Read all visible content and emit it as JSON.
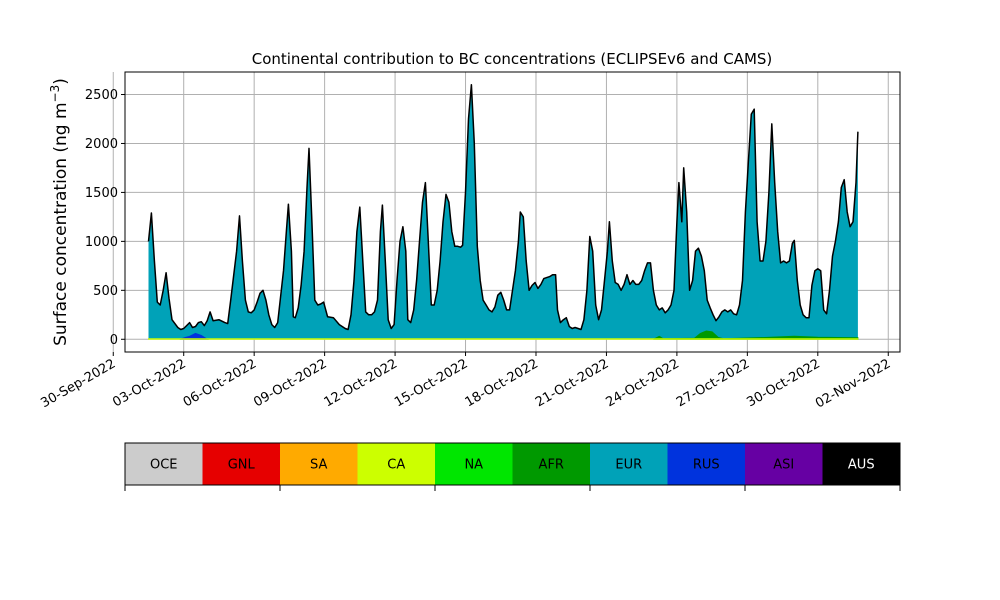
{
  "chart_data": {
    "type": "area",
    "title": "Continental contribution to BC concentrations (ECLIPSEv6 and CAMS)",
    "ylabel": "Surface concentration (ng m",
    "ylabel_sup": "−3",
    "ylabel_close": ")",
    "xlabel": "",
    "ylim": [
      -130,
      2730
    ],
    "xlim": [
      "2022-09-30T12:00",
      "2022-11-02T12:00"
    ],
    "grid": true,
    "stacking": "stacked",
    "y_ticks": [
      0,
      500,
      1000,
      1500,
      2000,
      2500
    ],
    "x_ticks": [
      "30-Sep-2022",
      "03-Oct-2022",
      "06-Oct-2022",
      "09-Oct-2022",
      "12-Oct-2022",
      "15-Oct-2022",
      "18-Oct-2022",
      "21-Oct-2022",
      "24-Oct-2022",
      "27-Oct-2022",
      "30-Oct-2022",
      "02-Nov-2022"
    ],
    "x_tick_dates": [
      "2022-09-30",
      "2022-10-03",
      "2022-10-06",
      "2022-10-09",
      "2022-10-12",
      "2022-10-15",
      "2022-10-18",
      "2022-10-21",
      "2022-10-24",
      "2022-10-27",
      "2022-10-30",
      "2022-11-02"
    ],
    "legend": {
      "placement": "bottom",
      "entries": [
        {
          "label": "OCE",
          "color": "#cccccc"
        },
        {
          "label": "GNL",
          "color": "#e60000"
        },
        {
          "label": "SA",
          "color": "#ffaa00"
        },
        {
          "label": "CA",
          "color": "#ccff00"
        },
        {
          "label": "NA",
          "color": "#00e600"
        },
        {
          "label": "AFR",
          "color": "#009900"
        },
        {
          "label": "EUR",
          "color": "#00a2b8"
        },
        {
          "label": "RUS",
          "color": "#0033dd"
        },
        {
          "label": "ASI",
          "color": "#6600a3"
        },
        {
          "label": "AUS",
          "color": "#000000"
        }
      ]
    },
    "total": [
      [
        "2022-10-01T12:00",
        1000
      ],
      [
        "2022-10-01T15:00",
        1290
      ],
      [
        "2022-10-01T18:00",
        800
      ],
      [
        "2022-10-01T21:00",
        380
      ],
      [
        "2022-10-02T00:00",
        350
      ],
      [
        "2022-10-02T03:00",
        500
      ],
      [
        "2022-10-02T06:00",
        680
      ],
      [
        "2022-10-02T09:00",
        420
      ],
      [
        "2022-10-02T12:00",
        200
      ],
      [
        "2022-10-02T15:00",
        160
      ],
      [
        "2022-10-02T18:00",
        120
      ],
      [
        "2022-10-02T21:00",
        100
      ],
      [
        "2022-10-03T00:00",
        110
      ],
      [
        "2022-10-03T03:00",
        140
      ],
      [
        "2022-10-03T06:00",
        170
      ],
      [
        "2022-10-03T09:00",
        120
      ],
      [
        "2022-10-03T12:00",
        130
      ],
      [
        "2022-10-03T15:00",
        170
      ],
      [
        "2022-10-03T18:00",
        180
      ],
      [
        "2022-10-03T21:00",
        140
      ],
      [
        "2022-10-04T00:00",
        190
      ],
      [
        "2022-10-04T03:00",
        280
      ],
      [
        "2022-10-04T06:00",
        190
      ],
      [
        "2022-10-04T12:00",
        200
      ],
      [
        "2022-10-04T18:00",
        170
      ],
      [
        "2022-10-04T21:00",
        160
      ],
      [
        "2022-10-05T00:00",
        400
      ],
      [
        "2022-10-05T06:00",
        900
      ],
      [
        "2022-10-05T09:00",
        1260
      ],
      [
        "2022-10-05T12:00",
        800
      ],
      [
        "2022-10-05T15:00",
        400
      ],
      [
        "2022-10-05T18:00",
        280
      ],
      [
        "2022-10-05T21:00",
        270
      ],
      [
        "2022-10-06T00:00",
        300
      ],
      [
        "2022-10-06T03:00",
        380
      ],
      [
        "2022-10-06T06:00",
        470
      ],
      [
        "2022-10-06T09:00",
        500
      ],
      [
        "2022-10-06T12:00",
        400
      ],
      [
        "2022-10-06T15:00",
        250
      ],
      [
        "2022-10-06T18:00",
        150
      ],
      [
        "2022-10-06T21:00",
        120
      ],
      [
        "2022-10-07T00:00",
        170
      ],
      [
        "2022-10-07T06:00",
        700
      ],
      [
        "2022-10-07T09:00",
        1120
      ],
      [
        "2022-10-07T11:00",
        1380
      ],
      [
        "2022-10-07T14:00",
        900
      ],
      [
        "2022-10-07T16:00",
        230
      ],
      [
        "2022-10-07T18:00",
        220
      ],
      [
        "2022-10-07T21:00",
        320
      ],
      [
        "2022-10-08T00:00",
        550
      ],
      [
        "2022-10-08T03:00",
        900
      ],
      [
        "2022-10-08T06:00",
        1550
      ],
      [
        "2022-10-08T08:00",
        1950
      ],
      [
        "2022-10-08T11:00",
        1200
      ],
      [
        "2022-10-08T14:00",
        400
      ],
      [
        "2022-10-08T17:00",
        350
      ],
      [
        "2022-10-08T20:00",
        360
      ],
      [
        "2022-10-08T23:00",
        380
      ],
      [
        "2022-10-09T03:00",
        230
      ],
      [
        "2022-10-09T09:00",
        220
      ],
      [
        "2022-10-09T15:00",
        150
      ],
      [
        "2022-10-09T21:00",
        110
      ],
      [
        "2022-10-10T00:00",
        100
      ],
      [
        "2022-10-10T03:00",
        250
      ],
      [
        "2022-10-10T06:00",
        600
      ],
      [
        "2022-10-10T09:00",
        1100
      ],
      [
        "2022-10-10T12:00",
        1350
      ],
      [
        "2022-10-10T15:00",
        800
      ],
      [
        "2022-10-10T18:00",
        280
      ],
      [
        "2022-10-10T21:00",
        250
      ],
      [
        "2022-10-11T00:00",
        250
      ],
      [
        "2022-10-11T03:00",
        280
      ],
      [
        "2022-10-11T06:00",
        400
      ],
      [
        "2022-10-11T09:00",
        1100
      ],
      [
        "2022-10-11T11:00",
        1370
      ],
      [
        "2022-10-11T14:00",
        800
      ],
      [
        "2022-10-11T17:00",
        200
      ],
      [
        "2022-10-11T20:00",
        110
      ],
      [
        "2022-10-11T23:00",
        150
      ],
      [
        "2022-10-12T02:00",
        600
      ],
      [
        "2022-10-12T05:00",
        1000
      ],
      [
        "2022-10-12T08:00",
        1150
      ],
      [
        "2022-10-12T11:00",
        900
      ],
      [
        "2022-10-12T13:00",
        200
      ],
      [
        "2022-10-12T16:00",
        170
      ],
      [
        "2022-10-12T19:00",
        300
      ],
      [
        "2022-10-12T22:00",
        600
      ],
      [
        "2022-10-13T01:00",
        1000
      ],
      [
        "2022-10-13T04:00",
        1400
      ],
      [
        "2022-10-13T07:00",
        1600
      ],
      [
        "2022-10-13T10:00",
        1000
      ],
      [
        "2022-10-13T13:00",
        350
      ],
      [
        "2022-10-13T16:00",
        350
      ],
      [
        "2022-10-13T19:00",
        500
      ],
      [
        "2022-10-13T22:00",
        800
      ],
      [
        "2022-10-14T01:00",
        1200
      ],
      [
        "2022-10-14T04:00",
        1480
      ],
      [
        "2022-10-14T07:00",
        1400
      ],
      [
        "2022-10-14T10:00",
        1100
      ],
      [
        "2022-10-14T13:00",
        950
      ],
      [
        "2022-10-14T16:00",
        950
      ],
      [
        "2022-10-14T19:00",
        940
      ],
      [
        "2022-10-14T21:00",
        960
      ],
      [
        "2022-10-15T00:00",
        1500
      ],
      [
        "2022-10-15T03:00",
        2250
      ],
      [
        "2022-10-15T06:00",
        2600
      ],
      [
        "2022-10-15T09:00",
        2000
      ],
      [
        "2022-10-15T12:00",
        950
      ],
      [
        "2022-10-15T15:00",
        600
      ],
      [
        "2022-10-15T18:00",
        400
      ],
      [
        "2022-10-15T21:00",
        350
      ],
      [
        "2022-10-16T00:00",
        300
      ],
      [
        "2022-10-16T03:00",
        280
      ],
      [
        "2022-10-16T06:00",
        330
      ],
      [
        "2022-10-16T09:00",
        450
      ],
      [
        "2022-10-16T12:00",
        480
      ],
      [
        "2022-10-16T15:00",
        400
      ],
      [
        "2022-10-16T18:00",
        300
      ],
      [
        "2022-10-16T21:00",
        300
      ],
      [
        "2022-10-17T00:00",
        500
      ],
      [
        "2022-10-17T03:00",
        700
      ],
      [
        "2022-10-17T06:00",
        1000
      ],
      [
        "2022-10-17T08:00",
        1300
      ],
      [
        "2022-10-17T11:00",
        1250
      ],
      [
        "2022-10-17T14:00",
        800
      ],
      [
        "2022-10-17T17:00",
        500
      ],
      [
        "2022-10-17T20:00",
        550
      ],
      [
        "2022-10-17T23:00",
        580
      ],
      [
        "2022-10-18T02:00",
        520
      ],
      [
        "2022-10-18T05:00",
        560
      ],
      [
        "2022-10-18T08:00",
        620
      ],
      [
        "2022-10-18T11:00",
        630
      ],
      [
        "2022-10-18T14:00",
        640
      ],
      [
        "2022-10-18T17:00",
        660
      ],
      [
        "2022-10-18T20:00",
        660
      ],
      [
        "2022-10-18T22:00",
        300
      ],
      [
        "2022-10-19T01:00",
        170
      ],
      [
        "2022-10-19T04:00",
        200
      ],
      [
        "2022-10-19T07:00",
        220
      ],
      [
        "2022-10-19T10:00",
        130
      ],
      [
        "2022-10-19T13:00",
        110
      ],
      [
        "2022-10-19T16:00",
        120
      ],
      [
        "2022-10-19T19:00",
        110
      ],
      [
        "2022-10-19T22:00",
        100
      ],
      [
        "2022-10-20T01:00",
        200
      ],
      [
        "2022-10-20T04:00",
        500
      ],
      [
        "2022-10-20T07:00",
        1050
      ],
      [
        "2022-10-20T10:00",
        900
      ],
      [
        "2022-10-20T13:00",
        350
      ],
      [
        "2022-10-20T16:00",
        200
      ],
      [
        "2022-10-20T19:00",
        300
      ],
      [
        "2022-10-20T22:00",
        600
      ],
      [
        "2022-10-21T01:00",
        900
      ],
      [
        "2022-10-21T03:00",
        1200
      ],
      [
        "2022-10-21T06:00",
        800
      ],
      [
        "2022-10-21T09:00",
        580
      ],
      [
        "2022-10-21T12:00",
        560
      ],
      [
        "2022-10-21T15:00",
        500
      ],
      [
        "2022-10-21T18:00",
        560
      ],
      [
        "2022-10-21T21:00",
        660
      ],
      [
        "2022-10-22T00:00",
        560
      ],
      [
        "2022-10-22T03:00",
        600
      ],
      [
        "2022-10-22T06:00",
        560
      ],
      [
        "2022-10-22T09:00",
        560
      ],
      [
        "2022-10-22T12:00",
        600
      ],
      [
        "2022-10-22T15:00",
        700
      ],
      [
        "2022-10-22T18:00",
        780
      ],
      [
        "2022-10-22T21:00",
        780
      ],
      [
        "2022-10-23T00:00",
        500
      ],
      [
        "2022-10-23T03:00",
        350
      ],
      [
        "2022-10-23T06:00",
        300
      ],
      [
        "2022-10-23T09:00",
        320
      ],
      [
        "2022-10-23T12:00",
        270
      ],
      [
        "2022-10-23T15:00",
        300
      ],
      [
        "2022-10-23T18:00",
        350
      ],
      [
        "2022-10-23T21:00",
        500
      ],
      [
        "2022-10-24T00:00",
        1200
      ],
      [
        "2022-10-24T02:00",
        1600
      ],
      [
        "2022-10-24T05:00",
        1200
      ],
      [
        "2022-10-24T07:00",
        1750
      ],
      [
        "2022-10-24T10:00",
        1300
      ],
      [
        "2022-10-24T13:00",
        500
      ],
      [
        "2022-10-24T16:00",
        600
      ],
      [
        "2022-10-24T19:00",
        900
      ],
      [
        "2022-10-24T22:00",
        930
      ],
      [
        "2022-10-25T01:00",
        850
      ],
      [
        "2022-10-25T04:00",
        700
      ],
      [
        "2022-10-25T07:00",
        400
      ],
      [
        "2022-10-25T10:00",
        320
      ],
      [
        "2022-10-25T13:00",
        250
      ],
      [
        "2022-10-25T16:00",
        190
      ],
      [
        "2022-10-25T19:00",
        230
      ],
      [
        "2022-10-25T22:00",
        280
      ],
      [
        "2022-10-26T01:00",
        300
      ],
      [
        "2022-10-26T04:00",
        280
      ],
      [
        "2022-10-26T07:00",
        300
      ],
      [
        "2022-10-26T10:00",
        260
      ],
      [
        "2022-10-26T13:00",
        250
      ],
      [
        "2022-10-26T16:00",
        350
      ],
      [
        "2022-10-26T19:00",
        600
      ],
      [
        "2022-10-26T22:00",
        1300
      ],
      [
        "2022-10-27T01:00",
        1800
      ],
      [
        "2022-10-27T04:00",
        2300
      ],
      [
        "2022-10-27T07:00",
        2350
      ],
      [
        "2022-10-27T10:00",
        1200
      ],
      [
        "2022-10-27T13:00",
        800
      ],
      [
        "2022-10-27T16:00",
        800
      ],
      [
        "2022-10-27T19:00",
        1000
      ],
      [
        "2022-10-27T22:00",
        1500
      ],
      [
        "2022-10-28T01:00",
        2200
      ],
      [
        "2022-10-28T04:00",
        1600
      ],
      [
        "2022-10-28T07:00",
        1100
      ],
      [
        "2022-10-28T10:00",
        780
      ],
      [
        "2022-10-28T13:00",
        800
      ],
      [
        "2022-10-28T16:00",
        780
      ],
      [
        "2022-10-28T19:00",
        800
      ],
      [
        "2022-10-28T22:00",
        980
      ],
      [
        "2022-10-29T00:00",
        1010
      ],
      [
        "2022-10-29T03:00",
        600
      ],
      [
        "2022-10-29T06:00",
        350
      ],
      [
        "2022-10-29T09:00",
        250
      ],
      [
        "2022-10-29T12:00",
        220
      ],
      [
        "2022-10-29T15:00",
        220
      ],
      [
        "2022-10-29T18:00",
        550
      ],
      [
        "2022-10-29T21:00",
        700
      ],
      [
        "2022-10-30T00:00",
        720
      ],
      [
        "2022-10-30T03:00",
        700
      ],
      [
        "2022-10-30T06:00",
        300
      ],
      [
        "2022-10-30T09:00",
        260
      ],
      [
        "2022-10-30T12:00",
        500
      ],
      [
        "2022-10-30T15:00",
        850
      ],
      [
        "2022-10-30T18:00",
        1000
      ],
      [
        "2022-10-30T21:00",
        1200
      ],
      [
        "2022-10-31T00:00",
        1550
      ],
      [
        "2022-10-31T03:00",
        1630
      ],
      [
        "2022-10-31T06:00",
        1300
      ],
      [
        "2022-10-31T09:00",
        1150
      ],
      [
        "2022-10-31T12:00",
        1200
      ],
      [
        "2022-10-31T15:00",
        1600
      ],
      [
        "2022-10-31T17:00",
        2120
      ]
    ],
    "components": [
      {
        "name": "RUS",
        "color": "#0033dd",
        "points": [
          [
            "2022-10-02T20:00",
            0
          ],
          [
            "2022-10-03T02:00",
            20
          ],
          [
            "2022-10-03T06:00",
            30
          ],
          [
            "2022-10-03T12:00",
            60
          ],
          [
            "2022-10-03T18:00",
            40
          ],
          [
            "2022-10-04T00:00",
            0
          ]
        ]
      },
      {
        "name": "AFR",
        "color": "#009900",
        "points": [
          [
            "2022-10-23T00:00",
            0
          ],
          [
            "2022-10-23T06:00",
            30
          ],
          [
            "2022-10-23T10:00",
            5
          ],
          [
            "2022-10-24T18:00",
            10
          ],
          [
            "2022-10-25T00:00",
            60
          ],
          [
            "2022-10-25T06:00",
            85
          ],
          [
            "2022-10-25T12:00",
            75
          ],
          [
            "2022-10-25T18:00",
            20
          ],
          [
            "2022-10-26T00:00",
            5
          ],
          [
            "2022-10-28T00:00",
            20
          ],
          [
            "2022-10-29T00:00",
            30
          ],
          [
            "2022-10-30T00:00",
            20
          ],
          [
            "2022-10-31T17:00",
            15
          ]
        ]
      },
      {
        "name": "CA",
        "color": "#ccff00",
        "points": [
          [
            "2022-10-01T12:00",
            5
          ],
          [
            "2022-10-31T17:00",
            5
          ]
        ]
      }
    ]
  }
}
